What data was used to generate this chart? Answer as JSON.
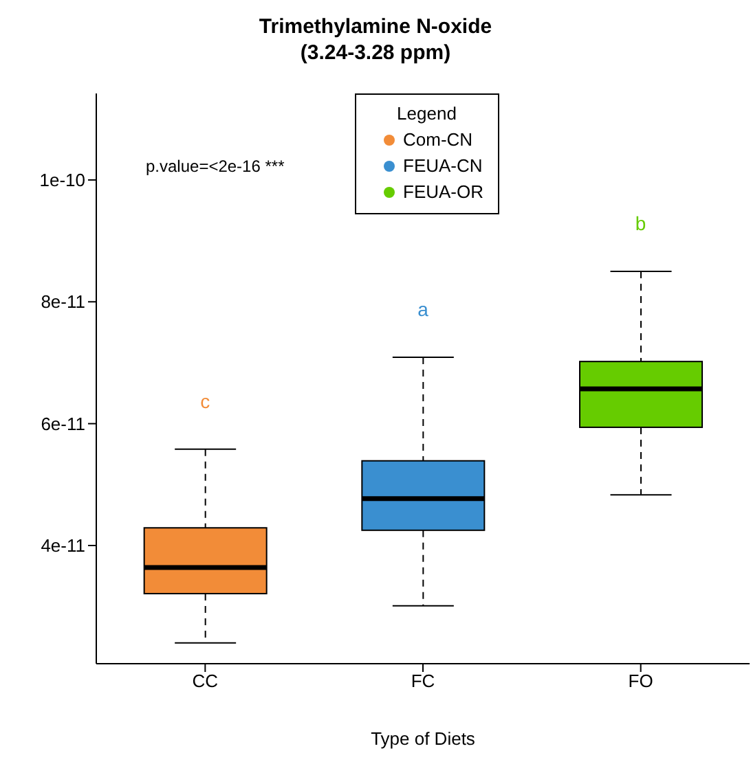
{
  "chart_data": {
    "type": "box",
    "title": "Trimethylamine N-oxide",
    "subtitle": "(3.24-3.28 ppm)",
    "xlabel": "Type of Diets",
    "legend_title": "Legend",
    "legend": "top",
    "categories": [
      "CC",
      "FC",
      "FO"
    ],
    "series": [
      {
        "name": "Com-CN",
        "color": "#f28c38",
        "boxes": [
          {
            "low": 2.4e-11,
            "q1": 3.21e-11,
            "median": 3.64e-11,
            "q3": 4.29e-11,
            "high": 5.58e-11
          },
          null,
          null
        ]
      },
      {
        "name": "FEUA-CN",
        "color": "#3a8fd0",
        "boxes": [
          null,
          {
            "low": 3.01e-11,
            "q1": 4.25e-11,
            "median": 4.77e-11,
            "q3": 5.39e-11,
            "high": 7.09e-11
          },
          null
        ]
      },
      {
        "name": "FEUA-OR",
        "color": "#66cc00",
        "boxes": [
          null,
          null,
          {
            "low": 4.83e-11,
            "q1": 5.94e-11,
            "median": 6.57e-11,
            "q3": 7.02e-11,
            "high": 8.5e-11
          }
        ]
      }
    ],
    "ylim": [
      2.06e-11,
      1.142e-10
    ],
    "yticks": [
      {
        "value": 4e-11,
        "label": "4e-11"
      },
      {
        "value": 6e-11,
        "label": "6e-11"
      },
      {
        "value": 8e-11,
        "label": "8e-11"
      },
      {
        "value": 1e-10,
        "label": "1e-10"
      }
    ],
    "annotations": [
      "p.value=<2e-16 ***",
      "c",
      "a",
      "b"
    ]
  }
}
